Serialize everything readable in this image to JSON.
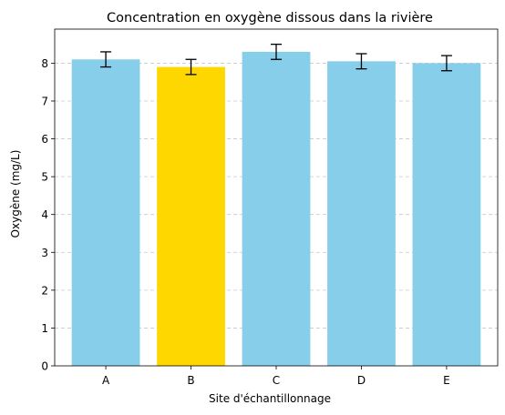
{
  "chart_data": {
    "type": "bar",
    "title": "Concentration en oxygène dissous dans la rivière",
    "xlabel": "Site d'échantillonnage",
    "ylabel": "Oxygène (mg/L)",
    "categories": [
      "A",
      "B",
      "C",
      "D",
      "E"
    ],
    "values": [
      8.1,
      7.9,
      8.3,
      8.05,
      8.0
    ],
    "errors": [
      0.2,
      0.2,
      0.2,
      0.2,
      0.2
    ],
    "ylim": [
      0,
      8.9
    ],
    "yticks": [
      "0",
      "1",
      "2",
      "3",
      "4",
      "5",
      "6",
      "7",
      "8"
    ],
    "bar_colors": [
      "#87ceeb",
      "#ffd700",
      "#87ceeb",
      "#87ceeb",
      "#87ceeb"
    ],
    "highlight_category": "B",
    "grid": "y, dashed",
    "legend": "none"
  }
}
